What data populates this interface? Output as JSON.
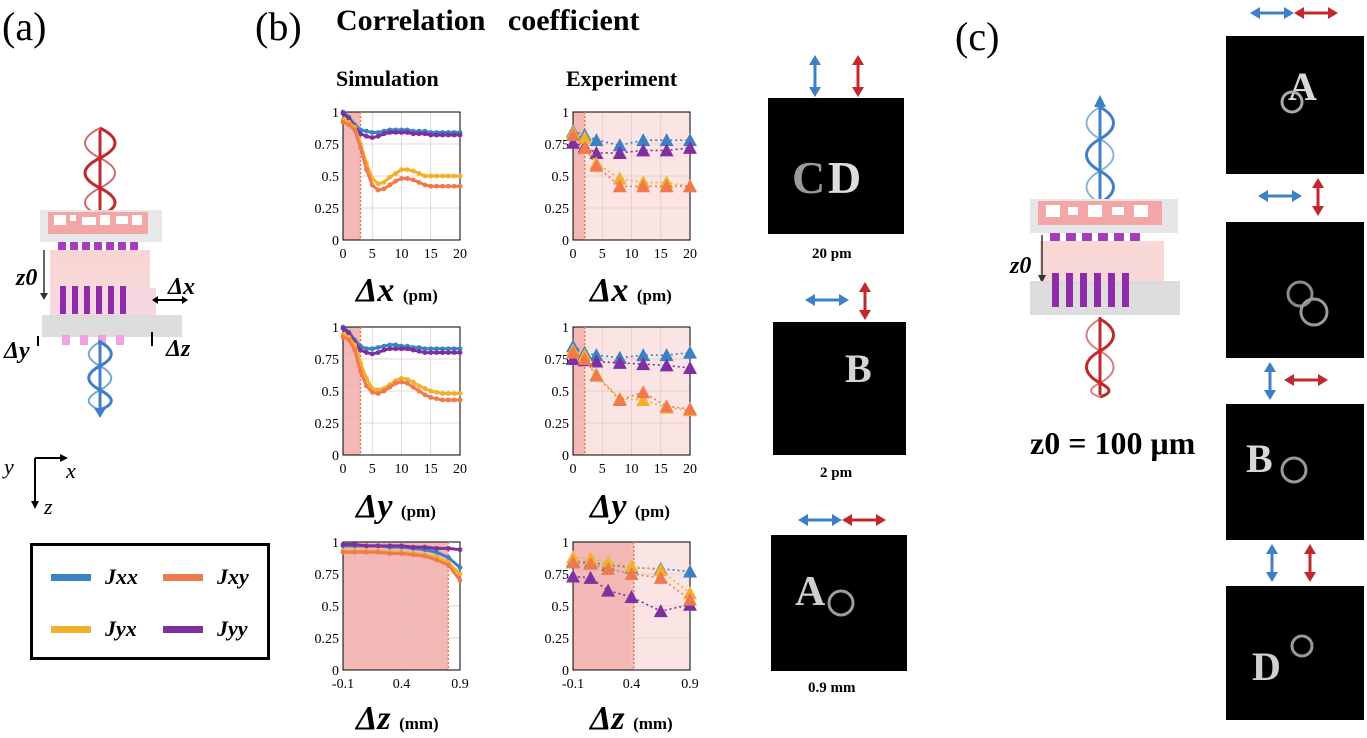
{
  "panel_labels": {
    "a": "(a)",
    "b": "(b)",
    "c": "(c)"
  },
  "main_title": "Correlation   coefficient",
  "column_titles": {
    "simulation": "Simulation",
    "experiment": "Experiment"
  },
  "schematic_a": {
    "z0": "z0",
    "dx": "Δx",
    "dy": "Δy",
    "dz": "Δz"
  },
  "axes_indicator": {
    "x": "x",
    "y": "y",
    "z": "z"
  },
  "legend": [
    {
      "label": "Jxx",
      "color": "#3b82c4"
    },
    {
      "label": "Jxy",
      "color": "#f07a4e"
    },
    {
      "label": "Jyx",
      "color": "#f1b12a"
    },
    {
      "label": "Jyy",
      "color": "#7e2fa0"
    }
  ],
  "x_labels": {
    "dx": {
      "symbol": "Δx",
      "unit": "(pm)"
    },
    "dy": {
      "symbol": "Δy",
      "unit": "(pm)"
    },
    "dz": {
      "symbol": "Δz",
      "unit": "(mm)"
    }
  },
  "image_captions": {
    "dx": "20 pm",
    "dy": "2 pm",
    "dz": "0.9 mm"
  },
  "z0_label": "z0 = 100 μm",
  "colors": {
    "xx": "#3b82c4",
    "xy": "#f07a4e",
    "yx": "#f1b12a",
    "yy": "#7e2fa0",
    "shade": "#f3b7b5",
    "shade_light": "#fbe4e4"
  },
  "chart_data": [
    {
      "id": "sim-dx",
      "type": "line",
      "title": "Simulation",
      "xlabel": "Δx (pm)",
      "ylabel": "",
      "xlim": [
        0,
        20
      ],
      "ylim": [
        0,
        1
      ],
      "xticks": [
        0,
        5,
        10,
        15,
        20
      ],
      "yticks": [
        0,
        0.25,
        0.5,
        0.75,
        1
      ],
      "shade": [
        0,
        3
      ],
      "series": [
        {
          "name": "Jxx",
          "x": [
            0,
            1,
            2,
            3,
            4,
            5,
            6,
            7,
            8,
            9,
            10,
            11,
            12,
            13,
            14,
            15,
            16,
            17,
            18,
            19,
            20
          ],
          "y": [
            1.0,
            0.96,
            0.9,
            0.86,
            0.85,
            0.84,
            0.84,
            0.85,
            0.86,
            0.86,
            0.86,
            0.86,
            0.85,
            0.85,
            0.85,
            0.84,
            0.84,
            0.84,
            0.84,
            0.84,
            0.84
          ]
        },
        {
          "name": "Jyy",
          "x": [
            0,
            1,
            2,
            3,
            4,
            5,
            6,
            7,
            8,
            9,
            10,
            11,
            12,
            13,
            14,
            15,
            16,
            17,
            18,
            19,
            20
          ],
          "y": [
            0.99,
            0.95,
            0.88,
            0.83,
            0.81,
            0.8,
            0.81,
            0.83,
            0.84,
            0.84,
            0.84,
            0.84,
            0.83,
            0.83,
            0.83,
            0.82,
            0.82,
            0.82,
            0.82,
            0.82,
            0.82
          ]
        },
        {
          "name": "Jyx",
          "x": [
            0,
            1,
            2,
            3,
            4,
            5,
            6,
            7,
            8,
            9,
            10,
            11,
            12,
            13,
            14,
            15,
            16,
            17,
            18,
            19,
            20
          ],
          "y": [
            0.94,
            0.92,
            0.88,
            0.75,
            0.6,
            0.48,
            0.44,
            0.45,
            0.49,
            0.52,
            0.55,
            0.55,
            0.54,
            0.52,
            0.5,
            0.5,
            0.5,
            0.5,
            0.5,
            0.5,
            0.5
          ]
        },
        {
          "name": "Jxy",
          "x": [
            0,
            1,
            2,
            3,
            4,
            5,
            6,
            7,
            8,
            9,
            10,
            11,
            12,
            13,
            14,
            15,
            16,
            17,
            18,
            19,
            20
          ],
          "y": [
            0.92,
            0.9,
            0.86,
            0.72,
            0.55,
            0.43,
            0.39,
            0.4,
            0.43,
            0.46,
            0.48,
            0.48,
            0.47,
            0.45,
            0.43,
            0.42,
            0.42,
            0.42,
            0.42,
            0.42,
            0.42
          ]
        }
      ]
    },
    {
      "id": "exp-dx",
      "type": "scatter",
      "title": "Experiment",
      "xlabel": "Δx (pm)",
      "ylabel": "",
      "xlim": [
        0,
        20
      ],
      "ylim": [
        0,
        1
      ],
      "xticks": [
        0,
        5,
        10,
        15,
        20
      ],
      "yticks": [
        0,
        0.25,
        0.5,
        0.75,
        1
      ],
      "shade": [
        0,
        2
      ],
      "light_shade": [
        2,
        20
      ],
      "series": [
        {
          "name": "Jxx",
          "x": [
            0,
            2,
            4,
            8,
            12,
            16,
            20
          ],
          "y": [
            0.85,
            0.82,
            0.78,
            0.74,
            0.78,
            0.78,
            0.78
          ]
        },
        {
          "name": "Jyy",
          "x": [
            0,
            2,
            4,
            8,
            12,
            16,
            20
          ],
          "y": [
            0.76,
            0.73,
            0.68,
            0.68,
            0.7,
            0.7,
            0.72
          ]
        },
        {
          "name": "Jyx",
          "x": [
            0,
            2,
            4,
            8,
            12,
            16,
            20
          ],
          "y": [
            0.84,
            0.8,
            0.6,
            0.48,
            0.45,
            0.45,
            0.42
          ]
        },
        {
          "name": "Jxy",
          "x": [
            0,
            2,
            4,
            8,
            12,
            16,
            20
          ],
          "y": [
            0.82,
            0.72,
            0.58,
            0.42,
            0.42,
            0.42,
            0.42
          ]
        }
      ]
    },
    {
      "id": "sim-dy",
      "type": "line",
      "title": "",
      "xlabel": "Δy (pm)",
      "ylabel": "",
      "xlim": [
        0,
        20
      ],
      "ylim": [
        0,
        1
      ],
      "xticks": [
        0,
        5,
        10,
        15,
        20
      ],
      "yticks": [
        0,
        0.25,
        0.5,
        0.75,
        1
      ],
      "shade": [
        0,
        3
      ],
      "series": [
        {
          "name": "Jxx",
          "x": [
            0,
            1,
            2,
            3,
            4,
            5,
            6,
            7,
            8,
            9,
            10,
            11,
            12,
            13,
            14,
            15,
            16,
            17,
            18,
            19,
            20
          ],
          "y": [
            1.0,
            0.96,
            0.9,
            0.85,
            0.83,
            0.83,
            0.84,
            0.85,
            0.86,
            0.86,
            0.85,
            0.85,
            0.84,
            0.84,
            0.83,
            0.83,
            0.83,
            0.83,
            0.83,
            0.83,
            0.83
          ]
        },
        {
          "name": "Jyy",
          "x": [
            0,
            1,
            2,
            3,
            4,
            5,
            6,
            7,
            8,
            9,
            10,
            11,
            12,
            13,
            14,
            15,
            16,
            17,
            18,
            19,
            20
          ],
          "y": [
            0.99,
            0.95,
            0.88,
            0.82,
            0.8,
            0.79,
            0.8,
            0.82,
            0.83,
            0.83,
            0.83,
            0.83,
            0.82,
            0.81,
            0.8,
            0.8,
            0.8,
            0.8,
            0.8,
            0.8,
            0.8
          ]
        },
        {
          "name": "Jyx",
          "x": [
            0,
            1,
            2,
            3,
            4,
            5,
            6,
            7,
            8,
            9,
            10,
            11,
            12,
            13,
            14,
            15,
            16,
            17,
            18,
            19,
            20
          ],
          "y": [
            0.94,
            0.92,
            0.86,
            0.72,
            0.6,
            0.52,
            0.51,
            0.52,
            0.55,
            0.58,
            0.6,
            0.59,
            0.57,
            0.54,
            0.52,
            0.5,
            0.49,
            0.48,
            0.48,
            0.48,
            0.48
          ]
        },
        {
          "name": "Jxy",
          "x": [
            0,
            1,
            2,
            3,
            4,
            5,
            6,
            7,
            8,
            9,
            10,
            11,
            12,
            13,
            14,
            15,
            16,
            17,
            18,
            19,
            20
          ],
          "y": [
            0.92,
            0.9,
            0.82,
            0.65,
            0.54,
            0.49,
            0.48,
            0.5,
            0.53,
            0.56,
            0.57,
            0.56,
            0.53,
            0.5,
            0.47,
            0.45,
            0.44,
            0.43,
            0.43,
            0.43,
            0.43
          ]
        }
      ]
    },
    {
      "id": "exp-dy",
      "type": "scatter",
      "title": "",
      "xlabel": "Δy (pm)",
      "ylabel": "",
      "xlim": [
        0,
        20
      ],
      "ylim": [
        0,
        1
      ],
      "xticks": [
        0,
        5,
        10,
        15,
        20
      ],
      "yticks": [
        0,
        0.25,
        0.5,
        0.75,
        1
      ],
      "shade": [
        0,
        2
      ],
      "light_shade": [
        2,
        20
      ],
      "series": [
        {
          "name": "Jxx",
          "x": [
            0,
            2,
            4,
            8,
            12,
            16,
            20
          ],
          "y": [
            0.85,
            0.8,
            0.78,
            0.76,
            0.78,
            0.78,
            0.8
          ]
        },
        {
          "name": "Jyy",
          "x": [
            0,
            2,
            4,
            8,
            12,
            16,
            20
          ],
          "y": [
            0.75,
            0.74,
            0.73,
            0.72,
            0.71,
            0.7,
            0.68
          ]
        },
        {
          "name": "Jyx",
          "x": [
            0,
            2,
            4,
            8,
            12,
            16,
            20
          ],
          "y": [
            0.82,
            0.78,
            0.63,
            0.44,
            0.43,
            0.37,
            0.35
          ]
        },
        {
          "name": "Jxy",
          "x": [
            0,
            2,
            4,
            8,
            12,
            16,
            20
          ],
          "y": [
            0.8,
            0.75,
            0.62,
            0.43,
            0.49,
            0.38,
            0.36
          ]
        }
      ]
    },
    {
      "id": "sim-dz",
      "type": "line",
      "title": "",
      "xlabel": "Δz (mm)",
      "ylabel": "",
      "xlim": [
        -0.1,
        0.9
      ],
      "ylim": [
        0,
        1
      ],
      "xticks": [
        -0.1,
        0.4,
        0.9
      ],
      "yticks": [
        0,
        0.25,
        0.5,
        0.75,
        1
      ],
      "shade": [
        -0.1,
        0.8
      ],
      "series": [
        {
          "name": "Jxx",
          "x": [
            -0.1,
            0,
            0.1,
            0.2,
            0.3,
            0.4,
            0.5,
            0.6,
            0.7,
            0.8,
            0.9
          ],
          "y": [
            0.97,
            0.97,
            0.97,
            0.97,
            0.96,
            0.96,
            0.95,
            0.94,
            0.92,
            0.88,
            0.8
          ]
        },
        {
          "name": "Jyy",
          "x": [
            -0.1,
            0,
            0.1,
            0.2,
            0.3,
            0.4,
            0.5,
            0.6,
            0.7,
            0.8,
            0.9
          ],
          "y": [
            0.98,
            0.98,
            0.97,
            0.97,
            0.97,
            0.97,
            0.96,
            0.96,
            0.95,
            0.95,
            0.94
          ]
        },
        {
          "name": "Jyx",
          "x": [
            -0.1,
            0,
            0.1,
            0.2,
            0.3,
            0.4,
            0.5,
            0.6,
            0.7,
            0.8,
            0.9
          ],
          "y": [
            0.93,
            0.93,
            0.93,
            0.93,
            0.92,
            0.92,
            0.91,
            0.9,
            0.88,
            0.84,
            0.75
          ]
        },
        {
          "name": "Jxy",
          "x": [
            -0.1,
            0,
            0.1,
            0.2,
            0.3,
            0.4,
            0.5,
            0.6,
            0.7,
            0.8,
            0.9
          ],
          "y": [
            0.92,
            0.92,
            0.92,
            0.92,
            0.91,
            0.91,
            0.9,
            0.89,
            0.86,
            0.82,
            0.7
          ]
        }
      ]
    },
    {
      "id": "exp-dz",
      "type": "scatter",
      "title": "",
      "xlabel": "Δz (mm)",
      "ylabel": "",
      "xlim": [
        -0.1,
        0.9
      ],
      "ylim": [
        0,
        1
      ],
      "xticks": [
        -0.1,
        0.4,
        0.9
      ],
      "yticks": [
        0,
        0.25,
        0.5,
        0.75,
        1
      ],
      "shade": [
        -0.1,
        0.42
      ],
      "light_shade": [
        0.42,
        0.9
      ],
      "series": [
        {
          "name": "Jxx",
          "x": [
            -0.1,
            0.05,
            0.2,
            0.4,
            0.65,
            0.9
          ],
          "y": [
            0.85,
            0.84,
            0.82,
            0.8,
            0.79,
            0.77
          ]
        },
        {
          "name": "Jyy",
          "x": [
            -0.1,
            0.05,
            0.2,
            0.4,
            0.65,
            0.9
          ],
          "y": [
            0.73,
            0.72,
            0.62,
            0.57,
            0.46,
            0.51
          ]
        },
        {
          "name": "Jyx",
          "x": [
            -0.1,
            0.05,
            0.2,
            0.4,
            0.65,
            0.9
          ],
          "y": [
            0.88,
            0.87,
            0.84,
            0.81,
            0.78,
            0.6
          ]
        },
        {
          "name": "Jxy",
          "x": [
            -0.1,
            0.05,
            0.2,
            0.4,
            0.65,
            0.9
          ],
          "y": [
            0.84,
            0.83,
            0.79,
            0.75,
            0.72,
            0.55
          ]
        }
      ]
    }
  ]
}
